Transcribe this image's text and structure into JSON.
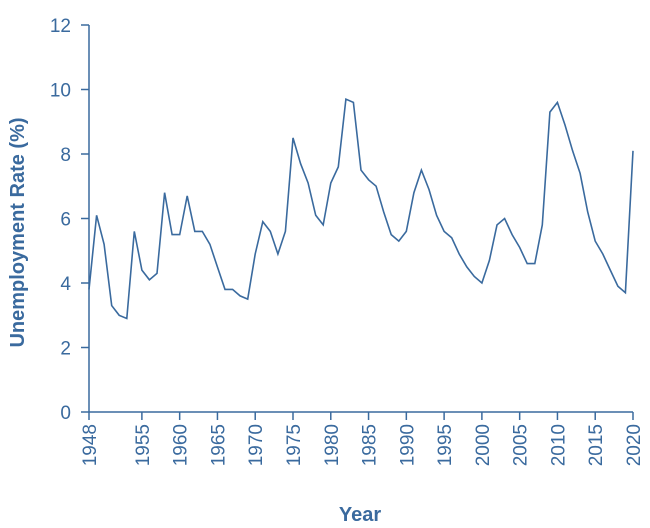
{
  "chart_data": {
    "type": "line",
    "title": "",
    "xlabel": "Year",
    "ylabel": "Unemployment Rate (%)",
    "xlim": [
      1948,
      2020
    ],
    "ylim": [
      0,
      12
    ],
    "x_ticks": [
      1948,
      1955,
      1960,
      1965,
      1970,
      1975,
      1980,
      1985,
      1990,
      1995,
      2000,
      2005,
      2010,
      2015,
      2020
    ],
    "y_ticks": [
      0,
      2,
      4,
      6,
      8,
      10,
      12
    ],
    "grid": false,
    "color": "#3a6a9e",
    "series": [
      {
        "x": [
          1948,
          1949,
          1950,
          1951,
          1952,
          1953,
          1954,
          1955,
          1956,
          1957,
          1958,
          1959,
          1960,
          1961,
          1962,
          1963,
          1964,
          1965,
          1966,
          1967,
          1968,
          1969,
          1970,
          1971,
          1972,
          1973,
          1974,
          1975,
          1976,
          1977,
          1978,
          1979,
          1980,
          1981,
          1982,
          1983,
          1984,
          1985,
          1986,
          1987,
          1988,
          1989,
          1990,
          1991,
          1992,
          1993,
          1994,
          1995,
          1996,
          1997,
          1998,
          1999,
          2000,
          2001,
          2002,
          2003,
          2004,
          2005,
          2006,
          2007,
          2008,
          2009,
          2010,
          2011,
          2012,
          2013,
          2014,
          2015,
          2016,
          2017,
          2018,
          2019,
          2020
        ],
        "values": [
          3.8,
          6.1,
          5.2,
          3.3,
          3.0,
          2.9,
          5.6,
          4.4,
          4.1,
          4.3,
          6.8,
          5.5,
          5.5,
          6.7,
          5.6,
          5.6,
          5.2,
          4.5,
          3.8,
          3.8,
          3.6,
          3.5,
          4.9,
          5.9,
          5.6,
          4.9,
          5.6,
          8.5,
          7.7,
          7.1,
          6.1,
          5.8,
          7.1,
          7.6,
          9.7,
          9.6,
          7.5,
          7.2,
          7.0,
          6.2,
          5.5,
          5.3,
          5.6,
          6.8,
          7.5,
          6.9,
          6.1,
          5.6,
          5.4,
          4.9,
          4.5,
          4.2,
          4.0,
          4.7,
          5.8,
          6.0,
          5.5,
          5.1,
          4.6,
          4.6,
          5.8,
          9.3,
          9.6,
          8.9,
          8.1,
          7.4,
          6.2,
          5.3,
          4.9,
          4.4,
          3.9,
          3.7,
          8.1
        ]
      }
    ]
  }
}
